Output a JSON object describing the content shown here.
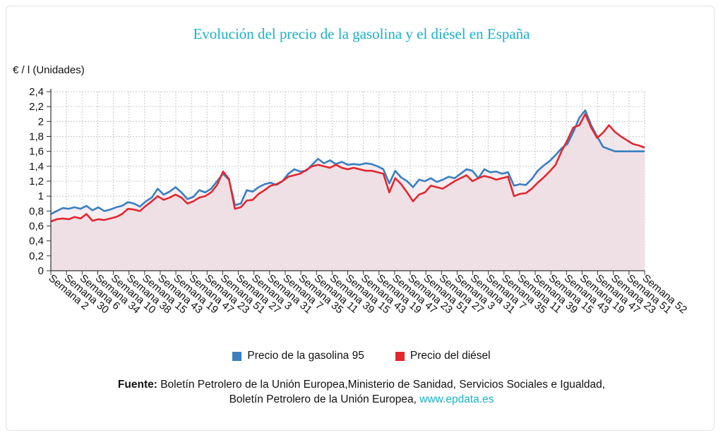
{
  "chart_data": {
    "type": "area",
    "title": "Evolución del precio de la gasolina y el diésel en España",
    "ylabel": "€ / l (Unidades)",
    "xlabel": "",
    "ylim": [
      0,
      2.4
    ],
    "yticks": [
      "0",
      "0,2",
      "0,4",
      "0,6",
      "0,8",
      "1",
      "1,2",
      "1,4",
      "1,6",
      "1,8",
      "2",
      "2,2",
      "2,4"
    ],
    "grid": true,
    "legend_position": "bottom",
    "x_tick_labels": [
      "Semana 2",
      "Semana 30",
      "Semana 6",
      "Semana 34",
      "Semana 10",
      "Semana 38",
      "Semana 15",
      "Semana 43",
      "Semana 19",
      "Semana 47",
      "Semana 23",
      "Semana 51",
      "Semana 27",
      "Semana 3",
      "Semana 31",
      "Semana 7",
      "Semana 35",
      "Semana 11",
      "Semana 39",
      "Semana 15",
      "Semana 43",
      "Semana 19",
      "Semana 47",
      "Semana 23",
      "Semana 51",
      "Semana 27",
      "Semana 3",
      "Semana 31",
      "Semana 7",
      "Semana 35",
      "Semana 11",
      "Semana 39",
      "Semana 15",
      "Semana 43",
      "Semana 19",
      "Semana 47",
      "Semana 23",
      "Semana 51",
      "Semana 52"
    ],
    "series": [
      {
        "name": "Precio de la gasolina 95",
        "color": "#3a7fc0",
        "x": [
          0,
          1,
          2,
          3,
          4,
          5,
          6,
          7,
          8,
          9,
          10,
          11,
          12,
          13,
          14,
          15,
          16,
          17,
          18,
          19,
          20,
          21,
          22,
          23,
          24,
          25,
          26,
          27,
          28,
          29,
          30,
          31,
          32,
          33,
          34,
          35,
          36,
          37,
          38,
          39,
          40,
          41,
          42,
          43,
          44,
          45,
          46,
          47,
          48,
          49,
          50,
          51,
          52,
          53,
          54,
          55,
          56,
          57,
          58,
          59,
          60,
          61,
          62,
          63,
          64,
          65,
          66,
          67,
          68,
          69,
          70,
          71,
          72,
          73,
          74,
          75,
          76,
          77,
          78,
          79,
          80,
          81,
          82,
          83,
          84,
          85,
          86,
          87,
          88,
          89,
          90,
          91,
          92,
          93,
          94,
          95,
          96,
          97,
          98,
          99,
          100
        ],
        "values": [
          0.76,
          0.8,
          0.84,
          0.83,
          0.85,
          0.83,
          0.87,
          0.81,
          0.85,
          0.8,
          0.82,
          0.85,
          0.87,
          0.92,
          0.9,
          0.86,
          0.93,
          0.98,
          1.1,
          1.02,
          1.06,
          1.12,
          1.05,
          0.96,
          0.99,
          1.08,
          1.05,
          1.1,
          1.2,
          1.3,
          1.22,
          0.88,
          0.9,
          1.08,
          1.06,
          1.12,
          1.16,
          1.18,
          1.15,
          1.2,
          1.3,
          1.36,
          1.33,
          1.34,
          1.42,
          1.5,
          1.44,
          1.48,
          1.43,
          1.46,
          1.42,
          1.43,
          1.42,
          1.44,
          1.43,
          1.4,
          1.36,
          1.17,
          1.34,
          1.25,
          1.2,
          1.12,
          1.22,
          1.2,
          1.24,
          1.19,
          1.22,
          1.26,
          1.24,
          1.3,
          1.36,
          1.34,
          1.24,
          1.36,
          1.32,
          1.33,
          1.3,
          1.32,
          1.14,
          1.16,
          1.15,
          1.23,
          1.34,
          1.41,
          1.47,
          1.55,
          1.64,
          1.7,
          1.86,
          2.05,
          2.15,
          1.95,
          1.8,
          1.66,
          1.63,
          1.6,
          1.6,
          1.6,
          1.6,
          1.6,
          1.6
        ]
      },
      {
        "name": "Precio del diésel",
        "color": "#e2272f",
        "x": [
          0,
          1,
          2,
          3,
          4,
          5,
          6,
          7,
          8,
          9,
          10,
          11,
          12,
          13,
          14,
          15,
          16,
          17,
          18,
          19,
          20,
          21,
          22,
          23,
          24,
          25,
          26,
          27,
          28,
          29,
          30,
          31,
          32,
          33,
          34,
          35,
          36,
          37,
          38,
          39,
          40,
          41,
          42,
          43,
          44,
          45,
          46,
          47,
          48,
          49,
          50,
          51,
          52,
          53,
          54,
          55,
          56,
          57,
          58,
          59,
          60,
          61,
          62,
          63,
          64,
          65,
          66,
          67,
          68,
          69,
          70,
          71,
          72,
          73,
          74,
          75,
          76,
          77,
          78,
          79,
          80,
          81,
          82,
          83,
          84,
          85,
          86,
          87,
          88,
          89,
          90,
          91,
          92,
          93,
          94,
          95,
          96,
          97,
          98,
          99,
          100
        ],
        "values": [
          0.66,
          0.69,
          0.7,
          0.69,
          0.72,
          0.7,
          0.76,
          0.67,
          0.69,
          0.68,
          0.7,
          0.72,
          0.76,
          0.83,
          0.82,
          0.8,
          0.87,
          0.93,
          1.0,
          0.95,
          0.98,
          1.02,
          0.98,
          0.9,
          0.93,
          0.98,
          1.0,
          1.05,
          1.15,
          1.33,
          1.23,
          0.83,
          0.85,
          0.94,
          0.95,
          1.03,
          1.08,
          1.14,
          1.16,
          1.2,
          1.26,
          1.28,
          1.3,
          1.35,
          1.4,
          1.42,
          1.4,
          1.38,
          1.42,
          1.38,
          1.36,
          1.38,
          1.36,
          1.34,
          1.34,
          1.32,
          1.3,
          1.05,
          1.24,
          1.16,
          1.05,
          0.93,
          1.02,
          1.05,
          1.14,
          1.12,
          1.1,
          1.15,
          1.2,
          1.24,
          1.28,
          1.2,
          1.24,
          1.27,
          1.25,
          1.22,
          1.24,
          1.26,
          1.0,
          1.03,
          1.04,
          1.1,
          1.18,
          1.25,
          1.33,
          1.42,
          1.6,
          1.75,
          1.92,
          1.95,
          2.1,
          1.92,
          1.78,
          1.85,
          1.95,
          1.86,
          1.8,
          1.75,
          1.7,
          1.68,
          1.65
        ]
      }
    ]
  },
  "legend": {
    "gasolina": "Precio de la gasolina 95",
    "diesel": "Precio del diésel",
    "gasolina_color": "#3a7fc0",
    "diesel_color": "#e2272f"
  },
  "source": {
    "label": "Fuente:",
    "line1": "Boletín Petrolero de la Unión Europea,Ministerio de Sanidad, Servicios Sociales e Igualdad,",
    "line2": "Boletín Petrolero de la Unión Europea,",
    "link": "www.epdata.es"
  }
}
